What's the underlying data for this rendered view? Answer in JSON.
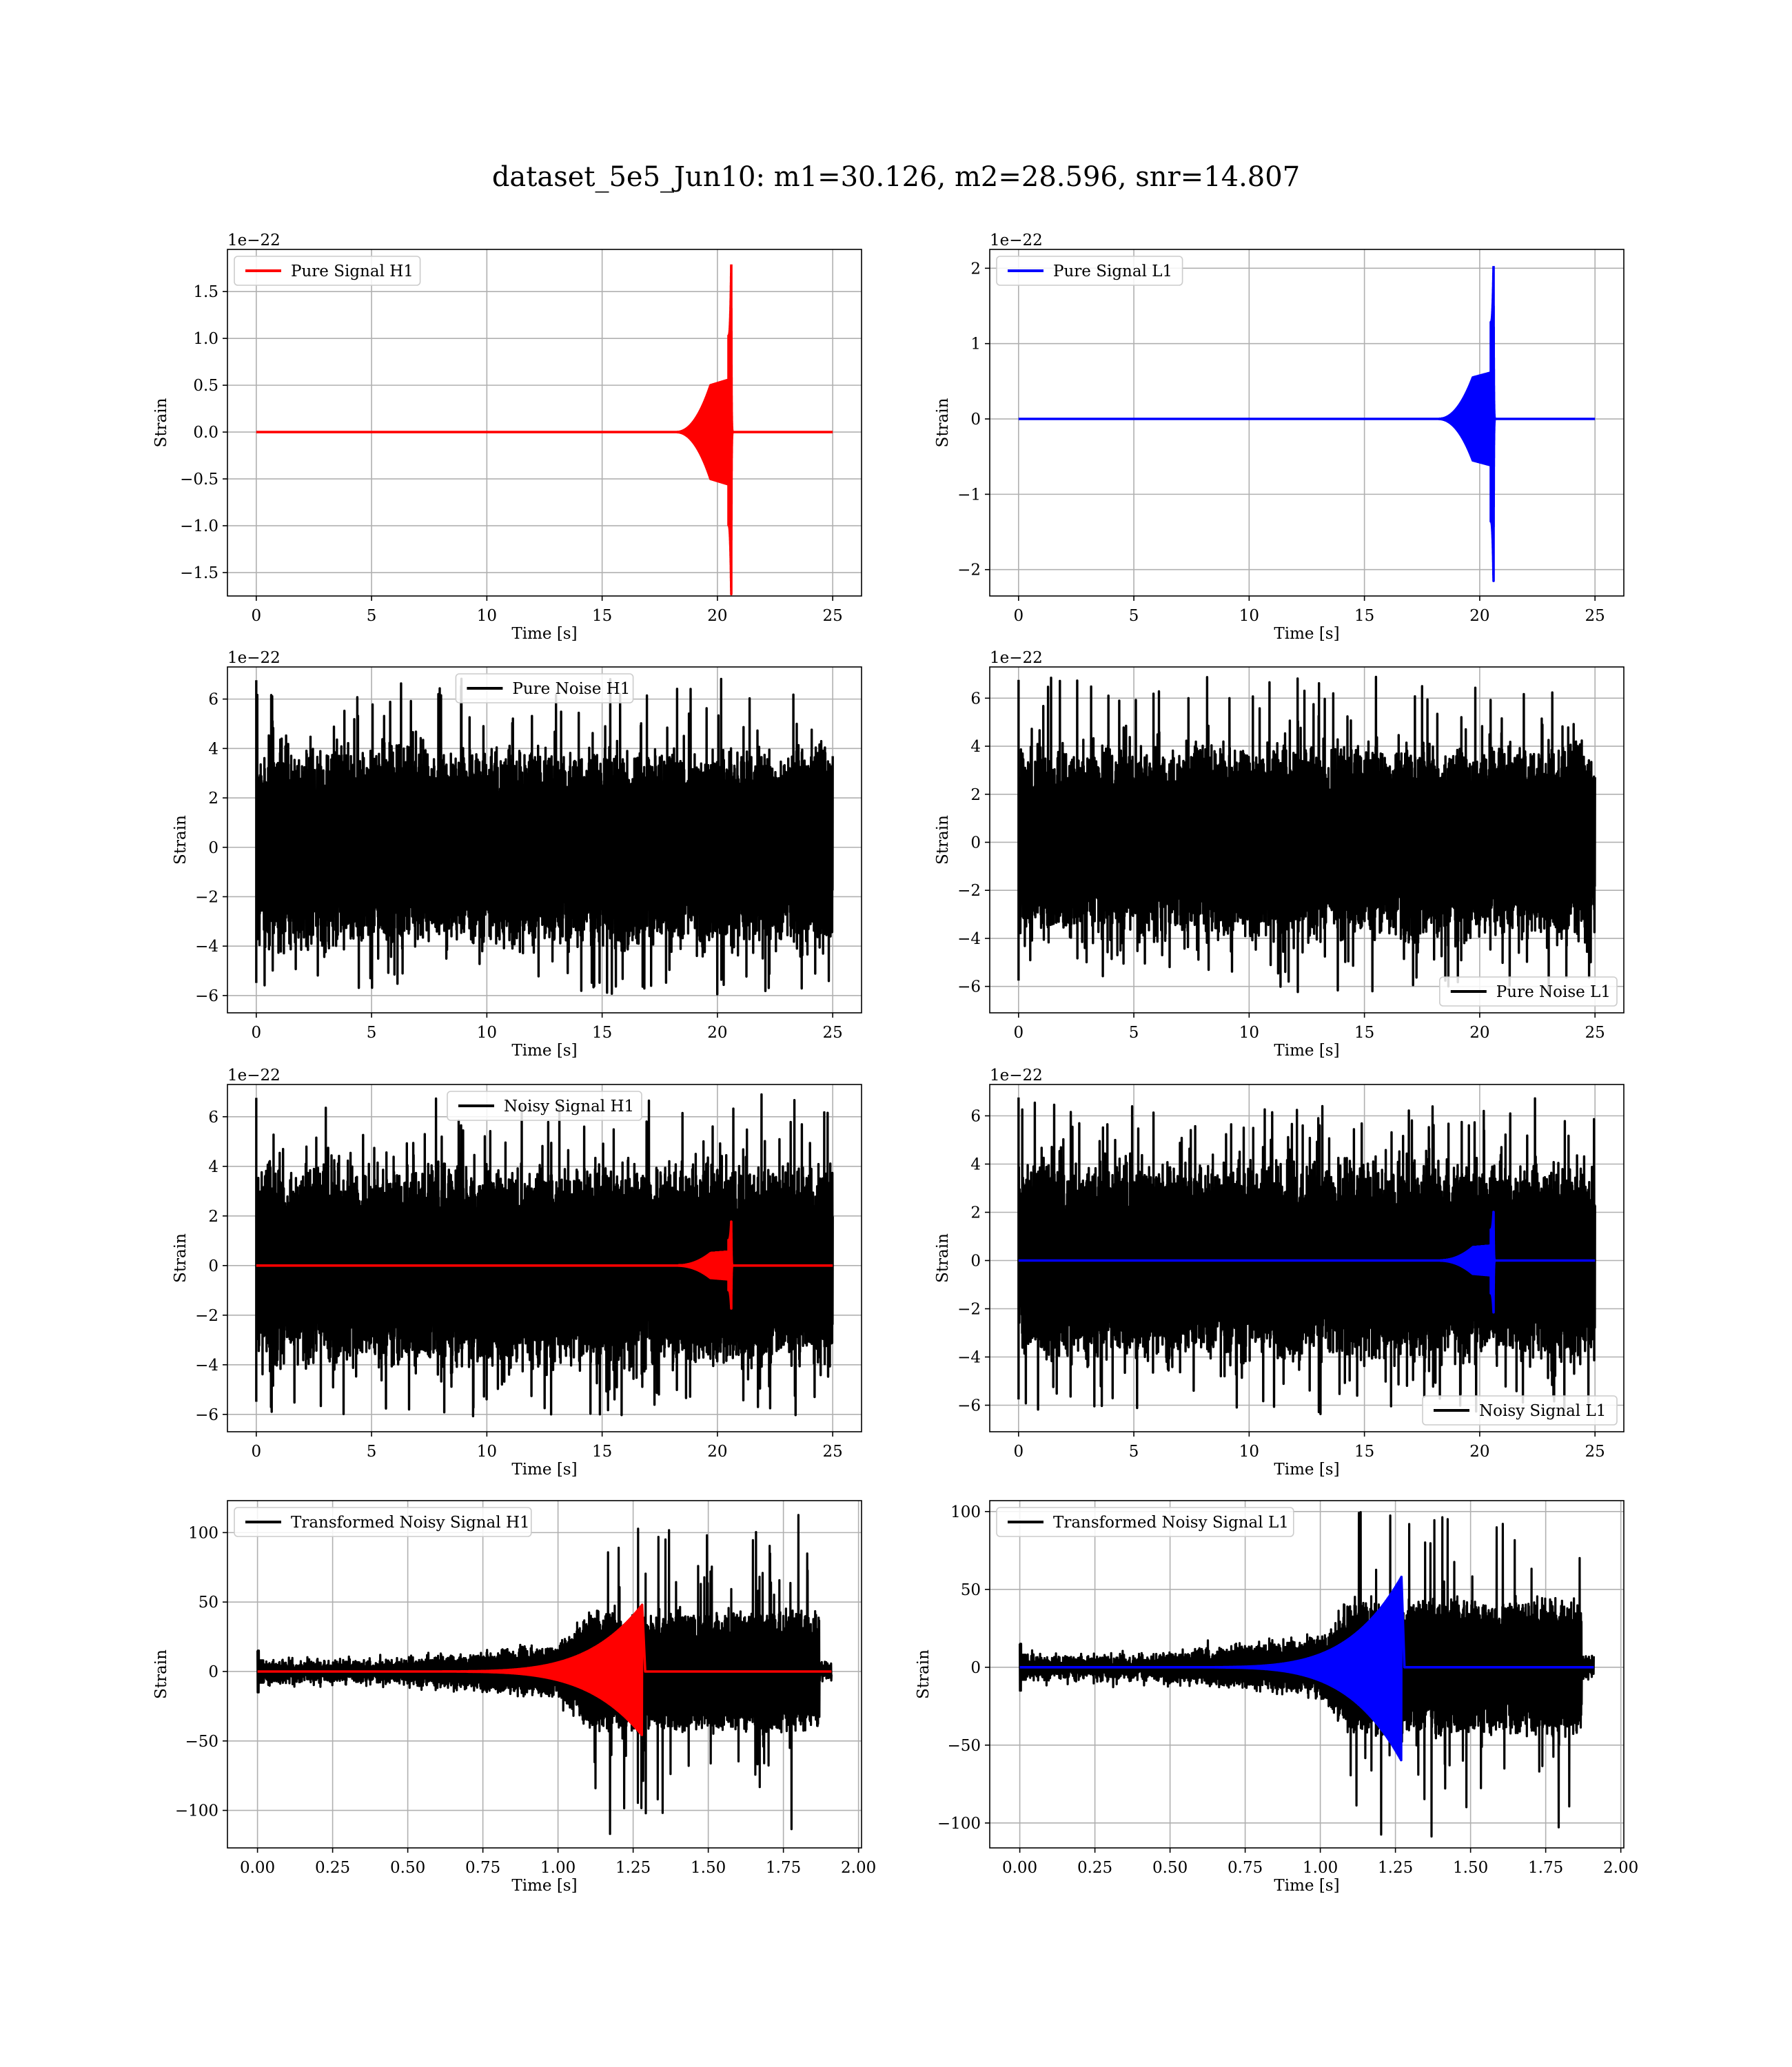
{
  "figure_title": "dataset_5e5_Jun10: m1=30.126, m2=28.596, snr=14.807",
  "colors": {
    "h1": "#ff0000",
    "l1": "#0000ff",
    "noise": "#000000",
    "grid": "#b0b0b0"
  },
  "chart_data": [
    {
      "type": "line",
      "id": "pure-signal-h1",
      "ylabel": "Strain",
      "xlabel": "Time [s]",
      "y_offset_label": "1e−22",
      "xlim": [
        -1.25,
        26.25
      ],
      "ylim": [
        -1.75,
        1.95
      ],
      "xticks": [
        0,
        5,
        10,
        15,
        20,
        25
      ],
      "yticks": [
        -1.5,
        -1.0,
        -0.5,
        0.0,
        0.5,
        1.0,
        1.5
      ],
      "ytick_labels": [
        "−1.5",
        "−1.0",
        "−0.5",
        "0.0",
        "0.5",
        "1.0",
        "1.5"
      ],
      "grid": true,
      "legend_position": "upper-left",
      "series": [
        {
          "name": "Pure Signal H1",
          "color": "#ff0000",
          "kind": "chirp",
          "x": [
            0,
            25
          ],
          "merger_time": 20.6,
          "peak": 1.79,
          "trough": -1.73,
          "plateau": 0.5
        }
      ]
    },
    {
      "type": "line",
      "id": "pure-signal-l1",
      "ylabel": "Strain",
      "xlabel": "Time [s]",
      "y_offset_label": "1e−22",
      "xlim": [
        -1.25,
        26.25
      ],
      "ylim": [
        -2.35,
        2.25
      ],
      "xticks": [
        0,
        5,
        10,
        15,
        20,
        25
      ],
      "yticks": [
        -2,
        -1,
        0,
        1,
        2
      ],
      "ytick_labels": [
        "−2",
        "−1",
        "0",
        "1",
        "2"
      ],
      "grid": true,
      "legend_position": "upper-left",
      "series": [
        {
          "name": "Pure Signal L1",
          "color": "#0000ff",
          "kind": "chirp",
          "x": [
            0,
            25
          ],
          "merger_time": 20.6,
          "peak": 2.03,
          "trough": -2.15,
          "plateau": 0.55
        }
      ]
    },
    {
      "type": "line",
      "id": "pure-noise-h1",
      "ylabel": "Strain",
      "xlabel": "Time [s]",
      "y_offset_label": "1e−22",
      "xlim": [
        -1.25,
        26.25
      ],
      "ylim": [
        -6.7,
        7.3
      ],
      "xticks": [
        0,
        5,
        10,
        15,
        20,
        25
      ],
      "yticks": [
        -6,
        -4,
        -2,
        0,
        2,
        4,
        6
      ],
      "ytick_labels": [
        "−6",
        "−4",
        "−2",
        "0",
        "2",
        "4",
        "6"
      ],
      "grid": true,
      "legend_position": "upper-center",
      "series": [
        {
          "name": "Pure Noise H1",
          "color": "#000000",
          "kind": "noise",
          "x": [
            0,
            25
          ],
          "band": 3.3,
          "max": 6.9,
          "min": -6.1
        }
      ]
    },
    {
      "type": "line",
      "id": "pure-noise-l1",
      "ylabel": "Strain",
      "xlabel": "Time [s]",
      "y_offset_label": "1e−22",
      "xlim": [
        -1.25,
        26.25
      ],
      "ylim": [
        -7.1,
        7.3
      ],
      "xticks": [
        0,
        5,
        10,
        15,
        20,
        25
      ],
      "yticks": [
        -6,
        -4,
        -2,
        0,
        2,
        4,
        6
      ],
      "ytick_labels": [
        "−6",
        "−4",
        "−2",
        "0",
        "2",
        "4",
        "6"
      ],
      "grid": true,
      "legend_position": "lower-right",
      "series": [
        {
          "name": "Pure Noise L1",
          "color": "#000000",
          "kind": "noise",
          "x": [
            0,
            25
          ],
          "band": 3.3,
          "max": 6.9,
          "min": -6.4
        }
      ]
    },
    {
      "type": "line",
      "id": "noisy-signal-h1",
      "ylabel": "Strain",
      "xlabel": "Time [s]",
      "y_offset_label": "1e−22",
      "xlim": [
        -1.25,
        26.25
      ],
      "ylim": [
        -6.7,
        7.3
      ],
      "xticks": [
        0,
        5,
        10,
        15,
        20,
        25
      ],
      "yticks": [
        -6,
        -4,
        -2,
        0,
        2,
        4,
        6
      ],
      "ytick_labels": [
        "−6",
        "−4",
        "−2",
        "0",
        "2",
        "4",
        "6"
      ],
      "grid": true,
      "legend_position": "upper-center",
      "series": [
        {
          "name": "Noisy Signal H1",
          "color": "#000000",
          "kind": "noise",
          "x": [
            0,
            25
          ],
          "band": 3.3,
          "max": 6.9,
          "min": -6.1
        },
        {
          "name": "",
          "color": "#ff0000",
          "kind": "chirp",
          "x": [
            0,
            25
          ],
          "merger_time": 20.6,
          "peak": 1.79,
          "trough": -1.73,
          "plateau": 0.5
        }
      ]
    },
    {
      "type": "line",
      "id": "noisy-signal-l1",
      "ylabel": "Strain",
      "xlabel": "Time [s]",
      "y_offset_label": "1e−22",
      "xlim": [
        -1.25,
        26.25
      ],
      "ylim": [
        -7.1,
        7.3
      ],
      "xticks": [
        0,
        5,
        10,
        15,
        20,
        25
      ],
      "yticks": [
        -6,
        -4,
        -2,
        0,
        2,
        4,
        6
      ],
      "ytick_labels": [
        "−6",
        "−4",
        "−2",
        "0",
        "2",
        "4",
        "6"
      ],
      "grid": true,
      "legend_position": "lower-right",
      "series": [
        {
          "name": "Noisy Signal L1",
          "color": "#000000",
          "kind": "noise",
          "x": [
            0,
            25
          ],
          "band": 3.3,
          "max": 6.9,
          "min": -6.4
        },
        {
          "name": "",
          "color": "#0000ff",
          "kind": "chirp",
          "x": [
            0,
            25
          ],
          "merger_time": 20.6,
          "peak": 2.03,
          "trough": -2.15,
          "plateau": 0.55
        }
      ]
    },
    {
      "type": "line",
      "id": "transformed-noisy-signal-h1",
      "ylabel": "Strain",
      "xlabel": "Time [s]",
      "y_offset_label": "",
      "xlim": [
        -0.1,
        2.01
      ],
      "ylim": [
        -127,
        123
      ],
      "xticks": [
        0.0,
        0.25,
        0.5,
        0.75,
        1.0,
        1.25,
        1.5,
        1.75,
        2.0
      ],
      "xtick_labels": [
        "0.00",
        "0.25",
        "0.50",
        "0.75",
        "1.00",
        "1.25",
        "1.50",
        "1.75",
        "2.00"
      ],
      "yticks": [
        -100,
        -50,
        0,
        50,
        100
      ],
      "ytick_labels": [
        "−100",
        "−50",
        "0",
        "50",
        "100"
      ],
      "grid": true,
      "legend_position": "upper-left",
      "series": [
        {
          "name": "Transformed Noisy Signal H1",
          "color": "#000000",
          "kind": "whitened",
          "x": [
            0,
            1.91
          ],
          "cutoff": 1.87,
          "max": 113,
          "min": -118
        },
        {
          "name": "",
          "color": "#ff0000",
          "kind": "whitened-chirp",
          "x": [
            0,
            1.91
          ],
          "merger_time": 1.28,
          "peak": 48,
          "trough": -46
        }
      ]
    },
    {
      "type": "line",
      "id": "transformed-noisy-signal-l1",
      "ylabel": "Strain",
      "xlabel": "Time [s]",
      "y_offset_label": "",
      "xlim": [
        -0.1,
        2.01
      ],
      "ylim": [
        -116,
        107
      ],
      "xticks": [
        0.0,
        0.25,
        0.5,
        0.75,
        1.0,
        1.25,
        1.5,
        1.75,
        2.0
      ],
      "xtick_labels": [
        "0.00",
        "0.25",
        "0.50",
        "0.75",
        "1.00",
        "1.25",
        "1.50",
        "1.75",
        "2.00"
      ],
      "yticks": [
        -100,
        -50,
        0,
        50,
        100
      ],
      "ytick_labels": [
        "−100",
        "−50",
        "0",
        "50",
        "100"
      ],
      "grid": true,
      "legend_position": "upper-left",
      "series": [
        {
          "name": "Transformed Noisy Signal L1",
          "color": "#000000",
          "kind": "whitened",
          "x": [
            0,
            1.91
          ],
          "cutoff": 1.87,
          "max": 100,
          "min": -109
        },
        {
          "name": "",
          "color": "#0000ff",
          "kind": "whitened-chirp",
          "x": [
            0,
            1.91
          ],
          "merger_time": 1.27,
          "peak": 58,
          "trough": -60
        }
      ]
    }
  ]
}
